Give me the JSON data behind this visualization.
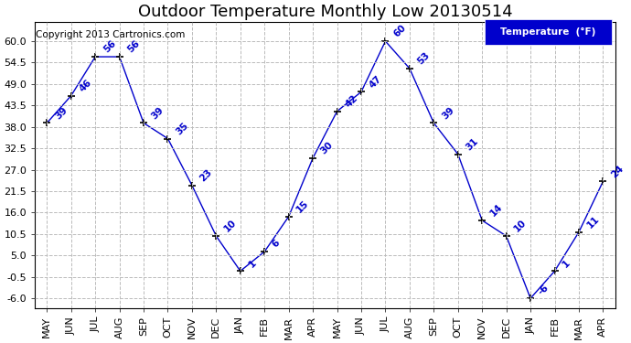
{
  "title": "Outdoor Temperature Monthly Low 20130514",
  "copyright": "Copyright 2013 Cartronics.com",
  "legend_label": "Temperature  (°F)",
  "months": [
    "MAY",
    "JUN",
    "JUL",
    "AUG",
    "SEP",
    "OCT",
    "NOV",
    "DEC",
    "JAN",
    "FEB",
    "MAR",
    "APR",
    "MAY",
    "JUN",
    "JUL",
    "AUG",
    "SEP",
    "OCT",
    "NOV",
    "DEC",
    "JAN",
    "FEB",
    "MAR",
    "APR"
  ],
  "values": [
    39,
    46,
    56,
    56,
    39,
    35,
    23,
    10,
    1,
    6,
    15,
    30,
    42,
    47,
    60,
    53,
    39,
    31,
    14,
    10,
    -6,
    1,
    11,
    24
  ],
  "labels": [
    "39",
    "46",
    "56",
    "56",
    "39",
    "35",
    "23",
    "10",
    "1",
    "6",
    "15",
    "30",
    "42",
    "47",
    "60",
    "53",
    "39",
    "31",
    "14",
    "10",
    "-6",
    "1",
    "11",
    "24"
  ],
  "line_color": "#0000cc",
  "marker_color": "#000000",
  "background_color": "#ffffff",
  "grid_color": "#bbbbbb",
  "ytick_values": [
    -6.0,
    -0.5,
    5.0,
    10.5,
    16.0,
    21.5,
    27.0,
    32.5,
    38.0,
    43.5,
    49.0,
    54.5,
    60.0
  ],
  "ytick_labels": [
    "-6.0",
    "-0.5",
    "5.0",
    "10.5",
    "16.0",
    "21.5",
    "27.0",
    "32.5",
    "38.0",
    "43.5",
    "49.0",
    "54.5",
    "60.0"
  ],
  "ylim": [
    -8.5,
    65
  ],
  "title_fontsize": 13,
  "label_fontsize": 7.5,
  "tick_fontsize": 8,
  "copyright_fontsize": 7.5
}
